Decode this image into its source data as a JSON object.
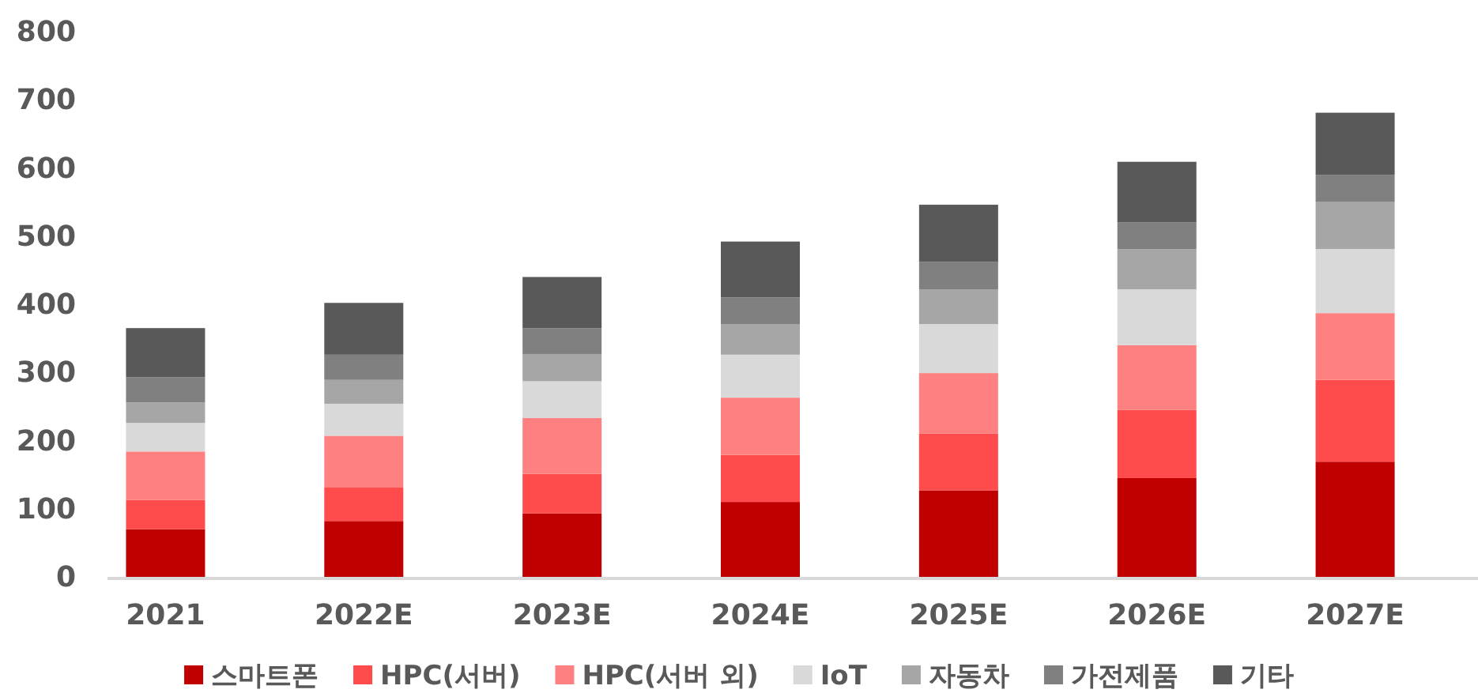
{
  "chart_data": {
    "type": "bar",
    "stacked": true,
    "categories": [
      "2021",
      "2022E",
      "2023E",
      "2024E",
      "2025E",
      "2026E",
      "2027E"
    ],
    "series": [
      {
        "name": "스마트폰",
        "color": "#c00000",
        "values": [
          70,
          82,
          93,
          110,
          127,
          145,
          169
        ]
      },
      {
        "name": "HPC(서버)",
        "color": "#ff4b4b",
        "values": [
          43,
          49,
          58,
          69,
          83,
          100,
          120
        ]
      },
      {
        "name": "HPC(서버 외)",
        "color": "#ff8080",
        "values": [
          71,
          76,
          82,
          84,
          89,
          95,
          98
        ]
      },
      {
        "name": "IoT",
        "color": "#d9d9d9",
        "values": [
          42,
          47,
          54,
          63,
          72,
          82,
          94
        ]
      },
      {
        "name": "자동차",
        "color": "#a6a6a6",
        "values": [
          30,
          35,
          40,
          45,
          51,
          59,
          69
        ]
      },
      {
        "name": "가전제품",
        "color": "#808080",
        "values": [
          37,
          37,
          38,
          39,
          40,
          39,
          40
        ]
      },
      {
        "name": "기타",
        "color": "#595959",
        "values": [
          72,
          76,
          75,
          82,
          84,
          89,
          91
        ]
      }
    ],
    "ylim": [
      0,
      800
    ],
    "yticks": [
      0,
      100,
      200,
      300,
      400,
      500,
      600,
      700,
      800
    ],
    "grid": false,
    "legend": "bottom"
  }
}
